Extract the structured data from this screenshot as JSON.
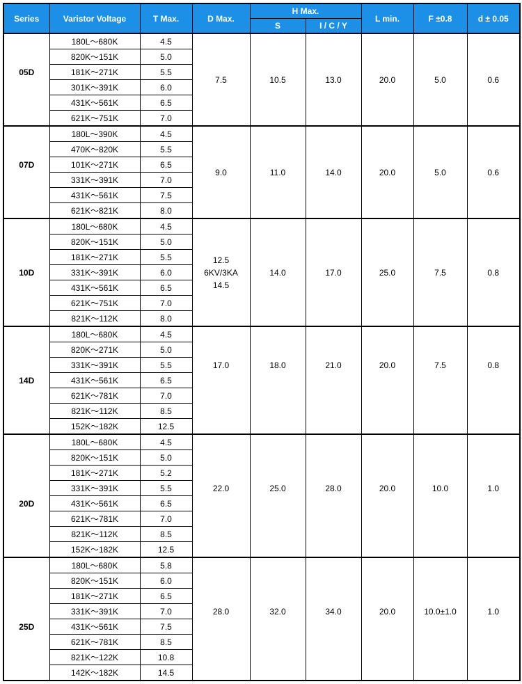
{
  "header": {
    "series": "Series",
    "voltage": "Varistor Voltage",
    "tmax": "T Max.",
    "dmax": "D Max.",
    "hmax": "H Max.",
    "s": "S",
    "icy": "I / C / Y",
    "lmin": "L min.",
    "f": "F ±0.8",
    "d": "d ± 0.05"
  },
  "style": {
    "header_bg": "#1c90e6",
    "header_fg": "#ffffff",
    "border_color": "#000000",
    "font_size_header": 12,
    "font_size_cell": 12
  },
  "groups": [
    {
      "series": "05D",
      "dmax": "7.5",
      "s": "10.5",
      "icy": "13.0",
      "lmin": "20.0",
      "f": "5.0",
      "d": "0.6",
      "rows": [
        {
          "voltage": "180L～680K",
          "tmax": "4.5"
        },
        {
          "voltage": "820K～151K",
          "tmax": "5.0"
        },
        {
          "voltage": "181K～271K",
          "tmax": "5.5"
        },
        {
          "voltage": "301K～391K",
          "tmax": "6.0"
        },
        {
          "voltage": "431K～561K",
          "tmax": "6.5"
        },
        {
          "voltage": "621K～751K",
          "tmax": "7.0"
        }
      ]
    },
    {
      "series": "07D",
      "dmax": "9.0",
      "s": "11.0",
      "icy": "14.0",
      "lmin": "20.0",
      "f": "5.0",
      "d": "0.6",
      "rows": [
        {
          "voltage": "180L～390K",
          "tmax": "4.5"
        },
        {
          "voltage": "470K～820K",
          "tmax": "5.5"
        },
        {
          "voltage": "101K～271K",
          "tmax": "6.5"
        },
        {
          "voltage": "331K～391K",
          "tmax": "7.0"
        },
        {
          "voltage": "431K～561K",
          "tmax": "7.5"
        },
        {
          "voltage": "621K～821K",
          "tmax": "8.0"
        }
      ]
    },
    {
      "series": "10D",
      "dmax": "12.5\n6KV/3KA\n14.5",
      "s": "14.0",
      "icy": "17.0",
      "lmin": "25.0",
      "f": "7.5",
      "d": "0.8",
      "rows": [
        {
          "voltage": "180L～680K",
          "tmax": "4.5"
        },
        {
          "voltage": "820K～151K",
          "tmax": "5.0"
        },
        {
          "voltage": "181K～271K",
          "tmax": "5.5"
        },
        {
          "voltage": "331K～391K",
          "tmax": "6.0"
        },
        {
          "voltage": "431K～561K",
          "tmax": "6.5"
        },
        {
          "voltage": "621K～751K",
          "tmax": "7.0"
        },
        {
          "voltage": "821K～112K",
          "tmax": "8.0"
        }
      ]
    },
    {
      "series": "14D",
      "dmax": "17.0",
      "s": "18.0",
      "icy": "21.0",
      "lmin": "20.0",
      "f": "7.5",
      "d": "0.8",
      "rows": [
        {
          "voltage": "180L～680K",
          "tmax": "4.5"
        },
        {
          "voltage": "820K～271K",
          "tmax": "5.0"
        },
        {
          "voltage": "331K～391K",
          "tmax": "5.5"
        },
        {
          "voltage": "431K～561K",
          "tmax": "6.5"
        },
        {
          "voltage": "621K～781K",
          "tmax": "7.0"
        },
        {
          "voltage": "821K～112K",
          "tmax": "8.5"
        },
        {
          "voltage": "152K～182K",
          "tmax": "12.5"
        }
      ]
    },
    {
      "series": "20D",
      "dmax": "22.0",
      "s": "25.0",
      "icy": "28.0",
      "lmin": "20.0",
      "f": "10.0",
      "d": "1.0",
      "rows": [
        {
          "voltage": "180L～680K",
          "tmax": "4.5"
        },
        {
          "voltage": "820K～151K",
          "tmax": "5.0"
        },
        {
          "voltage": "181K～271K",
          "tmax": "5.2"
        },
        {
          "voltage": "331K～391K",
          "tmax": "5.5"
        },
        {
          "voltage": "431K～561K",
          "tmax": "6.5"
        },
        {
          "voltage": "621K～781K",
          "tmax": "7.0"
        },
        {
          "voltage": "821K～112K",
          "tmax": "8.5"
        },
        {
          "voltage": "152K～182K",
          "tmax": "12.5"
        }
      ]
    },
    {
      "series": "25D",
      "dmax": "28.0",
      "s": "32.0",
      "icy": "34.0",
      "lmin": "20.0",
      "f": "10.0±1.0",
      "d": "1.0",
      "rows": [
        {
          "voltage": "180L～680K",
          "tmax": "5.8"
        },
        {
          "voltage": "820K～151K",
          "tmax": "6.0"
        },
        {
          "voltage": "181K～271K",
          "tmax": "6.5"
        },
        {
          "voltage": "331K～391K",
          "tmax": "7.0"
        },
        {
          "voltage": "431K～561K",
          "tmax": "7.5"
        },
        {
          "voltage": "621K～781K",
          "tmax": "8.5"
        },
        {
          "voltage": "821K～122K",
          "tmax": "10.8"
        },
        {
          "voltage": "142K～182K",
          "tmax": "14.5"
        }
      ]
    }
  ],
  "layout": {
    "spec_row_index": {
      "05D": 2,
      "07D": 2,
      "10D": 3,
      "14D": 2,
      "20D": 3,
      "25D": 3
    },
    "series_label_row_index": {
      "05D": 2,
      "07D": 2,
      "10D": 3,
      "14D": 3,
      "20D": 4,
      "25D": 4
    },
    "dmax_full_span": [
      "05D",
      "07D",
      "10D"
    ],
    "spec_cells_full_span": [
      "05D",
      "07D",
      "10D"
    ]
  }
}
